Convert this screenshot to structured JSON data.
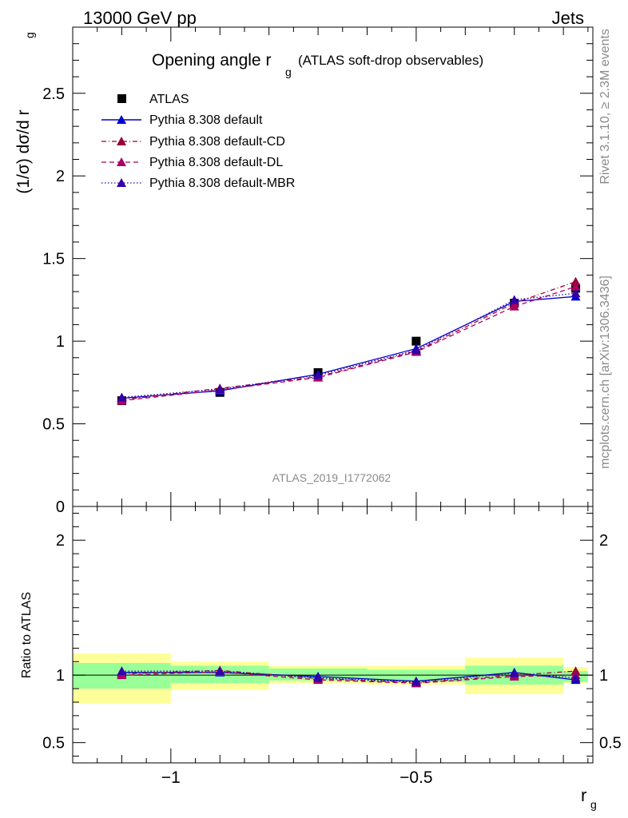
{
  "header": {
    "left": "13000 GeV pp",
    "right": "Jets"
  },
  "side_labels": {
    "top": "Rivet 3.1.10, ≥ 2.3M events",
    "bottom": "mcplots.cern.ch [arXiv:1306.3436]"
  },
  "analysis_id": "ATLAS_2019_I1772062",
  "colors": {
    "atlas": "#000000",
    "default": "#0000cc",
    "cd": "#990033",
    "dl": "#aa0066",
    "mbr": "#3300aa",
    "band_inner": "#99ff99",
    "band_outer": "#ffff99"
  },
  "chart_data": [
    {
      "type": "line",
      "title_main": "Opening angle r",
      "title_sub": "g",
      "title_extra": "(ATLAS soft-drop observables)",
      "ylabel_main": "(1/σ) dσ/d r",
      "ylabel_sub": "g",
      "xlim": [
        -1.2,
        -0.14
      ],
      "ylim": [
        0,
        2.9
      ],
      "yticks": [
        0,
        0.5,
        1,
        1.5,
        2,
        2.5
      ],
      "ytick_labels": [
        "0",
        "0.5",
        "1",
        "1.5",
        "2",
        "2.5"
      ],
      "legend_position": "top-left",
      "x": [
        -1.1,
        -0.9,
        -0.7,
        -0.5,
        -0.3,
        -0.175
      ],
      "series": [
        {
          "name": "ATLAS",
          "style": "data",
          "values": [
            0.64,
            0.69,
            0.81,
            1.0,
            1.23,
            1.32
          ]
        },
        {
          "name": "Pythia 8.308 default",
          "style": "solid",
          "values": [
            0.655,
            0.7,
            0.8,
            0.955,
            1.24,
            1.27
          ]
        },
        {
          "name": "Pythia 8.308 default-CD",
          "style": "dashdot",
          "values": [
            0.645,
            0.715,
            0.785,
            0.94,
            1.23,
            1.36
          ]
        },
        {
          "name": "Pythia 8.308 default-DL",
          "style": "dash",
          "values": [
            0.64,
            0.705,
            0.78,
            0.935,
            1.21,
            1.33
          ]
        },
        {
          "name": "Pythia 8.308 default-MBR",
          "style": "dot",
          "values": [
            0.66,
            0.71,
            0.795,
            0.945,
            1.25,
            1.29
          ]
        }
      ]
    },
    {
      "type": "line",
      "ylabel": "Ratio to ATLAS",
      "xlabel_main": "r",
      "xlabel_sub": "g",
      "xlim": [
        -1.2,
        -0.14
      ],
      "ylim": [
        0.35,
        2.25
      ],
      "yticks": [
        0.5,
        1,
        2
      ],
      "ytick_labels": [
        "0.5",
        "1",
        "2"
      ],
      "xticks": [
        -1,
        -0.5
      ],
      "xtick_labels": [
        "−1",
        "−0.5"
      ],
      "bins": [
        [
          -1.2,
          -1.0
        ],
        [
          -1.0,
          -0.8
        ],
        [
          -0.8,
          -0.6
        ],
        [
          -0.6,
          -0.4
        ],
        [
          -0.4,
          -0.2
        ],
        [
          -0.2,
          -0.15
        ]
      ],
      "band_inner": [
        [
          0.9,
          1.09
        ],
        [
          0.94,
          1.07
        ],
        [
          0.96,
          1.05
        ],
        [
          0.95,
          1.04
        ],
        [
          0.93,
          1.07
        ],
        [
          0.95,
          1.03
        ]
      ],
      "band_outer": [
        [
          0.79,
          1.16
        ],
        [
          0.89,
          1.1
        ],
        [
          0.94,
          1.07
        ],
        [
          0.93,
          1.07
        ],
        [
          0.86,
          1.13
        ],
        [
          0.94,
          1.06
        ]
      ],
      "x": [
        -1.1,
        -0.9,
        -0.7,
        -0.5,
        -0.3,
        -0.175
      ],
      "series": [
        {
          "name": "Pythia 8.308 default",
          "style": "solid",
          "values": [
            1.02,
            1.02,
            0.99,
            0.955,
            1.02,
            0.965
          ]
        },
        {
          "name": "Pythia 8.308 default-CD",
          "style": "dashdot",
          "values": [
            1.01,
            1.035,
            0.975,
            0.945,
            1.0,
            1.03
          ]
        },
        {
          "name": "Pythia 8.308 default-DL",
          "style": "dash",
          "values": [
            1.0,
            1.025,
            0.965,
            0.94,
            0.99,
            1.0
          ]
        },
        {
          "name": "Pythia 8.308 default-MBR",
          "style": "dot",
          "values": [
            1.03,
            1.03,
            0.98,
            0.95,
            1.015,
            0.98
          ]
        }
      ]
    }
  ]
}
